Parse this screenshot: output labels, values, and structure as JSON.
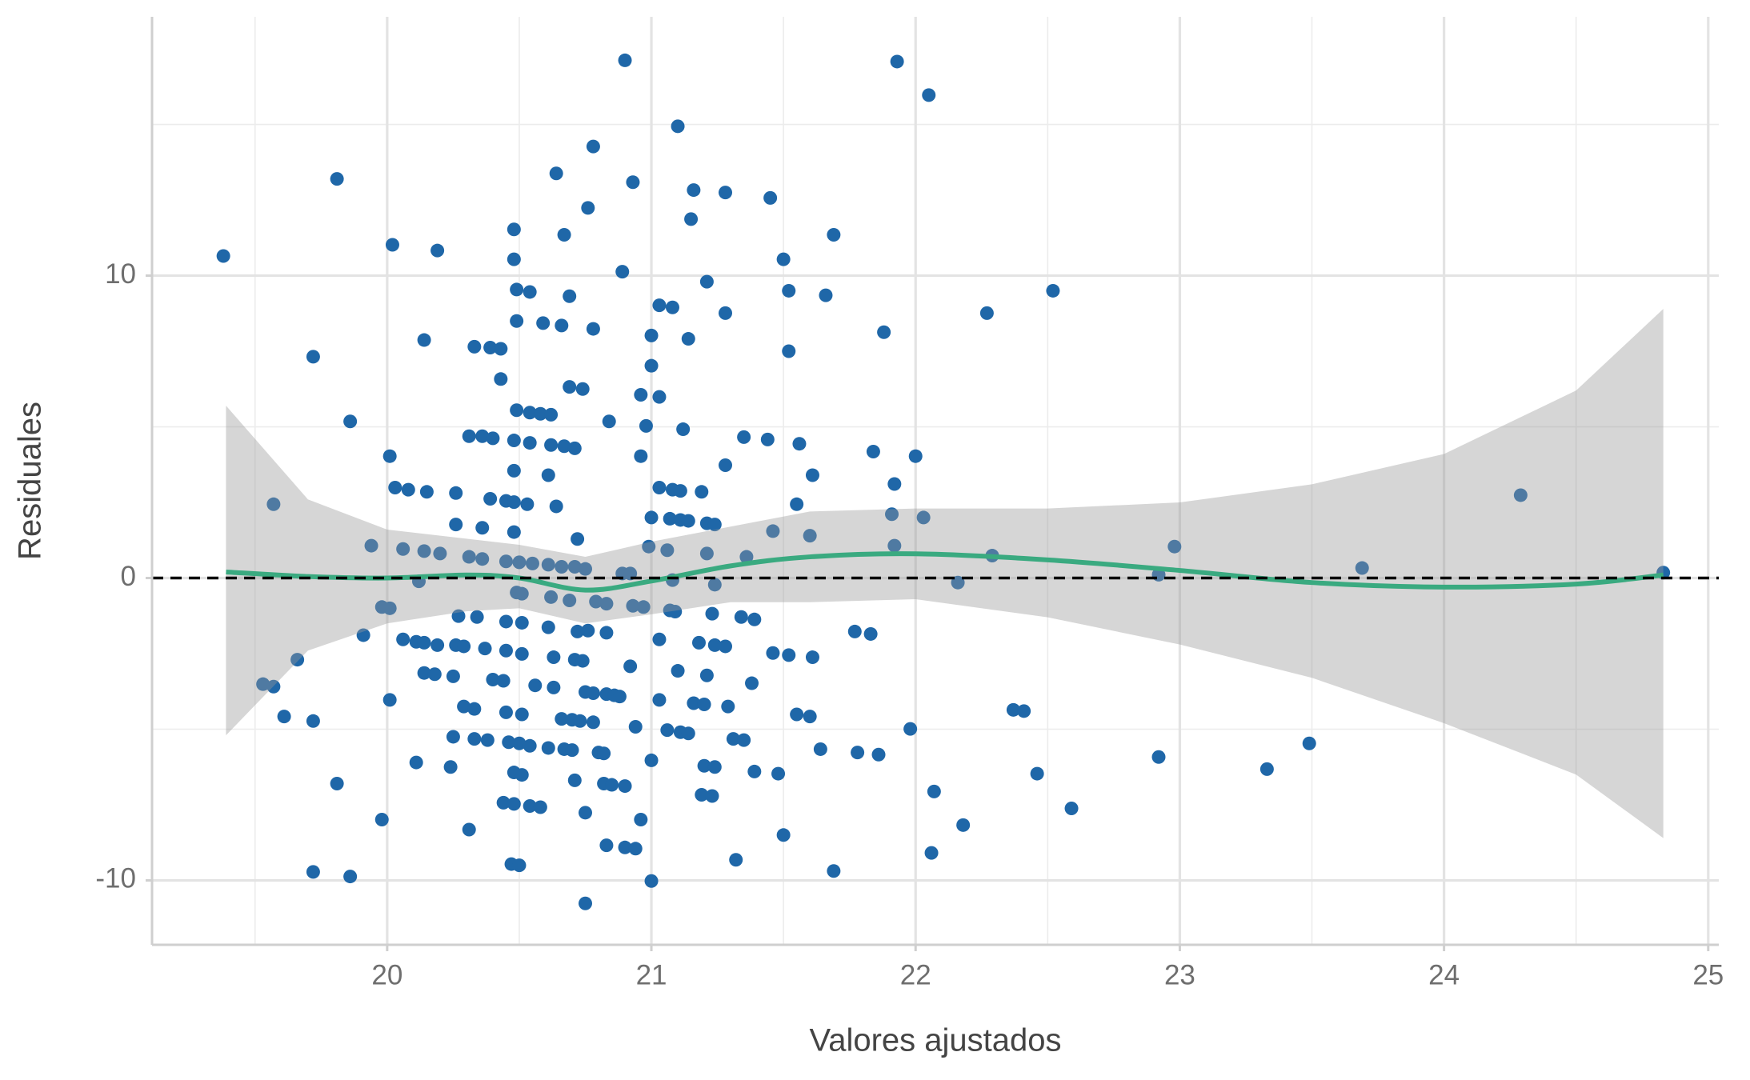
{
  "chart_data": {
    "type": "scatter",
    "x_label": "Valores ajustados",
    "y_label": "Residuales",
    "xlim": [
      19.11,
      25.04
    ],
    "ylim": [
      -12.13,
      18.56
    ],
    "xticks": [
      20,
      21,
      22,
      23,
      24,
      25
    ],
    "yticks": [
      -10,
      0,
      10
    ],
    "x_minor_grid": [
      19.5,
      20.5,
      21.5,
      22.5,
      23.5,
      24.5
    ],
    "y_minor_grid": [
      -5,
      5,
      15
    ],
    "grid": true,
    "color": "#1f67a8",
    "x": [
      19.38,
      19.81,
      19.57,
      19.72,
      19.86,
      19.94,
      20.02,
      20.01,
      20.03,
      20.08,
      20.15,
      20.06,
      20.14,
      20.19,
      20.14,
      20.12,
      20.2,
      20.26,
      20.26,
      20.31,
      20.36,
      20.33,
      20.39,
      20.43,
      20.43,
      20.4,
      20.39,
      20.36,
      20.31,
      20.36,
      20.45,
      20.48,
      20.48,
      20.49,
      20.54,
      20.49,
      20.59,
      20.66,
      20.64,
      20.67,
      20.69,
      20.76,
      20.78,
      20.78,
      20.9,
      20.93,
      20.89,
      20.84,
      20.69,
      20.74,
      20.49,
      20.54,
      20.58,
      20.62,
      20.48,
      20.54,
      20.62,
      20.67,
      20.71,
      20.48,
      20.61,
      20.48,
      20.53,
      20.64,
      20.48,
      20.72,
      20.45,
      20.5,
      20.55,
      20.61,
      20.66,
      20.71,
      20.75,
      20.49,
      20.51,
      20.62,
      20.79,
      20.83,
      20.69,
      20.89,
      20.92,
      20.93,
      20.97,
      20.99,
      21.06,
      21.0,
      21.03,
      21.08,
      21.11,
      21.07,
      21.11,
      21.14,
      21.19,
      21.21,
      21.24,
      21.21,
      21.08,
      21.24,
      21.36,
      20.96,
      20.98,
      20.96,
      21.03,
      21.0,
      21.0,
      21.03,
      21.08,
      21.14,
      21.12,
      21.21,
      21.28,
      21.1,
      21.16,
      21.15,
      21.28,
      21.45,
      21.5,
      21.52,
      21.52,
      21.69,
      21.66,
      21.35,
      21.44,
      21.28,
      21.56,
      21.61,
      21.55,
      21.46,
      21.6,
      21.88,
      21.84,
      21.93,
      22.05,
      22.0,
      21.92,
      21.91,
      22.03,
      21.92,
      22.27,
      22.52,
      22.29,
      22.16,
      22.98,
      22.92,
      23.69,
      24.29,
      24.83,
      19.98,
      20.01,
      19.91,
      20.06,
      20.11,
      20.14,
      20.19,
      20.27,
      20.34,
      20.26,
      20.29,
      20.37,
      20.45,
      20.51,
      20.61,
      20.45,
      20.51,
      20.63,
      20.71,
      20.74,
      20.76,
      20.83,
      20.72,
      21.03,
      21.07,
      21.09,
      21.18,
      21.23,
      21.24,
      21.28,
      21.34,
      21.39,
      21.46,
      21.52,
      21.61,
      21.77,
      21.83,
      19.53,
      19.57,
      19.66,
      19.61,
      19.72,
      20.14,
      20.18,
      20.25,
      20.01,
      20.29,
      20.33,
      20.4,
      20.44,
      20.56,
      20.63,
      20.45,
      20.51,
      20.66,
      20.7,
      20.73,
      20.78,
      20.75,
      20.78,
      20.83,
      20.86,
      20.88,
      20.92,
      21.03,
      21.1,
      21.16,
      21.2,
      21.21,
      21.29,
      21.38,
      21.55,
      21.6,
      21.06,
      21.11,
      21.14,
      20.94,
      20.25,
      20.33,
      20.38,
      20.46,
      20.5,
      20.54,
      20.61,
      20.67,
      20.7,
      20.8,
      20.82,
      20.11,
      20.24,
      20.48,
      20.51,
      20.71,
      20.82,
      20.85,
      20.9,
      21.0,
      21.2,
      21.24,
      21.31,
      21.35,
      21.39,
      21.48,
      21.64,
      21.78,
      21.86,
      21.98,
      22.37,
      22.41,
      22.46,
      22.07,
      22.59,
      22.18,
      22.06,
      22.92,
      23.33,
      23.49,
      19.81,
      19.98,
      19.72,
      19.86,
      20.31,
      20.44,
      20.48,
      20.54,
      20.58,
      20.75,
      20.47,
      20.5,
      20.75,
      20.83,
      20.9,
      20.94,
      20.96,
      21.0,
      21.19,
      21.23,
      21.32,
      21.5,
      21.69
    ],
    "y": [
      10.65,
      13.2,
      2.44,
      7.32,
      5.18,
      1.07,
      11.02,
      4.03,
      2.99,
      2.92,
      2.85,
      0.96,
      0.89,
      10.83,
      7.87,
      -0.11,
      0.81,
      2.81,
      1.77,
      4.69,
      4.69,
      7.65,
      7.62,
      7.58,
      6.58,
      4.62,
      2.62,
      1.66,
      0.7,
      0.63,
      2.55,
      11.53,
      10.54,
      9.54,
      9.46,
      8.5,
      8.43,
      8.35,
      13.38,
      11.35,
      9.32,
      12.24,
      14.27,
      8.24,
      17.12,
      13.09,
      10.13,
      5.18,
      6.32,
      6.25,
      5.55,
      5.47,
      5.43,
      5.4,
      4.55,
      4.47,
      4.4,
      4.36,
      4.29,
      3.55,
      3.4,
      2.51,
      2.44,
      2.37,
      1.52,
      1.29,
      0.55,
      0.52,
      0.48,
      0.44,
      0.37,
      0.37,
      0.3,
      -0.48,
      -0.52,
      -0.63,
      -0.78,
      -0.85,
      -0.74,
      0.15,
      0.15,
      -0.92,
      -0.96,
      1.04,
      0.92,
      2.0,
      2.99,
      2.92,
      2.88,
      1.96,
      1.92,
      1.89,
      2.85,
      1.81,
      1.77,
      0.81,
      -0.07,
      -0.22,
      0.7,
      4.03,
      5.03,
      6.06,
      5.99,
      7.02,
      8.02,
      9.02,
      8.95,
      7.91,
      4.92,
      9.8,
      8.76,
      14.94,
      12.83,
      11.87,
      12.75,
      12.57,
      10.54,
      9.5,
      7.5,
      11.35,
      9.35,
      4.66,
      4.58,
      3.73,
      4.44,
      3.4,
      2.44,
      1.55,
      1.4,
      8.13,
      4.18,
      17.08,
      15.97,
      4.03,
      3.11,
      2.11,
      2.0,
      1.07,
      8.76,
      9.5,
      0.74,
      -0.15,
      1.04,
      0.11,
      0.33,
      2.74,
      0.18,
      -0.96,
      -1.0,
      -1.89,
      -2.03,
      -2.11,
      -2.14,
      -2.22,
      -1.26,
      -1.29,
      -2.22,
      -2.26,
      -2.33,
      -1.44,
      -1.48,
      -1.63,
      -2.4,
      -2.51,
      -2.62,
      -2.7,
      -2.74,
      -1.74,
      -1.81,
      -1.77,
      -2.03,
      -1.07,
      -1.11,
      -2.14,
      -1.18,
      -2.22,
      -2.26,
      -1.29,
      -1.37,
      -2.48,
      -2.55,
      -2.62,
      -1.77,
      -1.85,
      -3.51,
      -3.59,
      -2.7,
      -4.58,
      -4.73,
      -3.14,
      -3.18,
      -3.25,
      -4.03,
      -4.25,
      -4.33,
      -3.36,
      -3.4,
      -3.55,
      -3.62,
      -4.44,
      -4.51,
      -4.66,
      -4.69,
      -4.73,
      -4.77,
      -3.77,
      -3.81,
      -3.84,
      -3.88,
      -3.92,
      -2.92,
      -4.03,
      -3.07,
      -4.14,
      -4.18,
      -3.22,
      -4.25,
      -3.48,
      -4.51,
      -4.58,
      -5.03,
      -5.1,
      -5.14,
      -4.92,
      -5.25,
      -5.32,
      -5.36,
      -5.43,
      -5.47,
      -5.55,
      -5.62,
      -5.66,
      -5.69,
      -5.77,
      -5.8,
      -6.1,
      -6.25,
      -6.43,
      -6.51,
      -6.69,
      -6.8,
      -6.84,
      -6.88,
      -6.03,
      -6.21,
      -6.25,
      -5.32,
      -5.36,
      -6.4,
      -6.47,
      -5.66,
      -5.77,
      -5.84,
      -4.99,
      -4.36,
      -4.4,
      -6.47,
      -7.06,
      -7.62,
      -8.17,
      -9.09,
      -5.92,
      -6.32,
      -5.47,
      -6.8,
      -7.99,
      -9.72,
      -9.87,
      -8.32,
      -7.43,
      -7.47,
      -7.54,
      -7.58,
      -7.76,
      -9.46,
      -9.5,
      -10.76,
      -8.84,
      -8.91,
      -8.95,
      -7.99,
      -10.02,
      -7.17,
      -7.21,
      -9.32,
      -8.5,
      -9.69
    ],
    "smooth": {
      "color": "#3aaa80",
      "band_color": "#999999",
      "x": [
        19.39,
        19.7,
        20.0,
        20.3,
        20.5,
        20.75,
        21.0,
        21.3,
        21.6,
        22.0,
        22.5,
        23.0,
        23.5,
        24.0,
        24.5,
        24.83
      ],
      "y": [
        0.2,
        0.05,
        0.0,
        0.1,
        0.0,
        -0.4,
        -0.1,
        0.4,
        0.7,
        0.8,
        0.6,
        0.25,
        -0.15,
        -0.3,
        -0.2,
        0.1
      ],
      "upper": [
        5.7,
        2.6,
        1.6,
        1.3,
        1.1,
        0.7,
        1.2,
        1.7,
        2.2,
        2.3,
        2.3,
        2.5,
        3.1,
        4.1,
        6.2,
        8.9
      ],
      "lower": [
        -5.2,
        -2.4,
        -1.5,
        -1.1,
        -1.0,
        -1.5,
        -1.2,
        -0.8,
        -0.8,
        -0.7,
        -1.3,
        -2.2,
        -3.3,
        -4.8,
        -6.5,
        -8.6
      ]
    },
    "reference_line": 0
  }
}
